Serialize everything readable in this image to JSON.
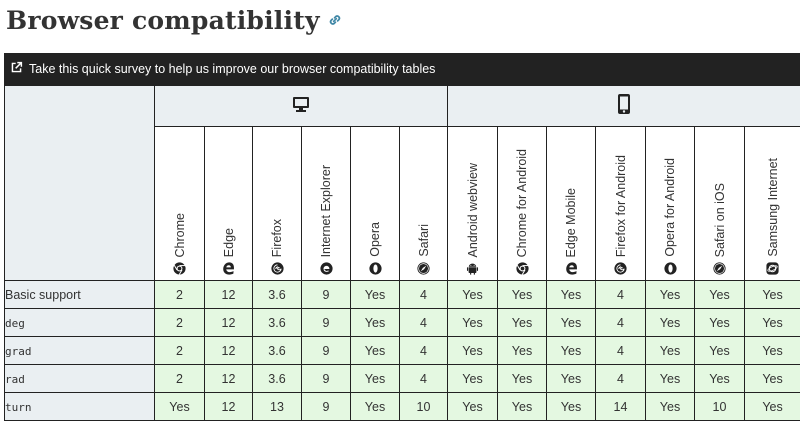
{
  "heading": {
    "title": "Browser compatibility",
    "link_icon": "link-icon"
  },
  "survey": {
    "text": "Take this quick survey to help us improve our browser compatibility tables",
    "icon": "external-link-icon"
  },
  "platforms": [
    {
      "name": "desktop",
      "icon": "desktop-icon"
    },
    {
      "name": "mobile",
      "icon": "mobile-icon"
    }
  ],
  "browsers": [
    {
      "name": "Chrome",
      "icon": "chrome-icon"
    },
    {
      "name": "Edge",
      "icon": "edge-icon"
    },
    {
      "name": "Firefox",
      "icon": "firefox-icon"
    },
    {
      "name": "Internet Explorer",
      "icon": "ie-icon"
    },
    {
      "name": "Opera",
      "icon": "opera-icon"
    },
    {
      "name": "Safari",
      "icon": "safari-icon"
    },
    {
      "name": "Android webview",
      "icon": "android-icon"
    },
    {
      "name": "Chrome for Android",
      "icon": "chrome-icon"
    },
    {
      "name": "Edge Mobile",
      "icon": "edge-icon"
    },
    {
      "name": "Firefox for Android",
      "icon": "firefox-icon"
    },
    {
      "name": "Opera for Android",
      "icon": "opera-icon"
    },
    {
      "name": "Safari on iOS",
      "icon": "safari-icon"
    },
    {
      "name": "Samsung Internet",
      "icon": "samsung-icon"
    }
  ],
  "rows": [
    {
      "feature": "Basic support",
      "code": false,
      "values": [
        "2",
        "12",
        "3.6",
        "9",
        "Yes",
        "4",
        "Yes",
        "Yes",
        "Yes",
        "4",
        "Yes",
        "Yes",
        "Yes"
      ]
    },
    {
      "feature": "deg",
      "code": true,
      "values": [
        "2",
        "12",
        "3.6",
        "9",
        "Yes",
        "4",
        "Yes",
        "Yes",
        "Yes",
        "4",
        "Yes",
        "Yes",
        "Yes"
      ]
    },
    {
      "feature": "grad",
      "code": true,
      "values": [
        "2",
        "12",
        "3.6",
        "9",
        "Yes",
        "4",
        "Yes",
        "Yes",
        "Yes",
        "4",
        "Yes",
        "Yes",
        "Yes"
      ]
    },
    {
      "feature": "rad",
      "code": true,
      "values": [
        "2",
        "12",
        "3.6",
        "9",
        "Yes",
        "4",
        "Yes",
        "Yes",
        "Yes",
        "4",
        "Yes",
        "Yes",
        "Yes"
      ]
    },
    {
      "feature": "turn",
      "code": true,
      "values": [
        "Yes",
        "12",
        "13",
        "9",
        "Yes",
        "10",
        "Yes",
        "Yes",
        "Yes",
        "14",
        "Yes",
        "10",
        "Yes"
      ]
    }
  ],
  "colors": {
    "supported": "#e4f8e1",
    "header_bg": "#eaeff2",
    "survey_bg": "#222222",
    "link": "#3f87a6"
  }
}
